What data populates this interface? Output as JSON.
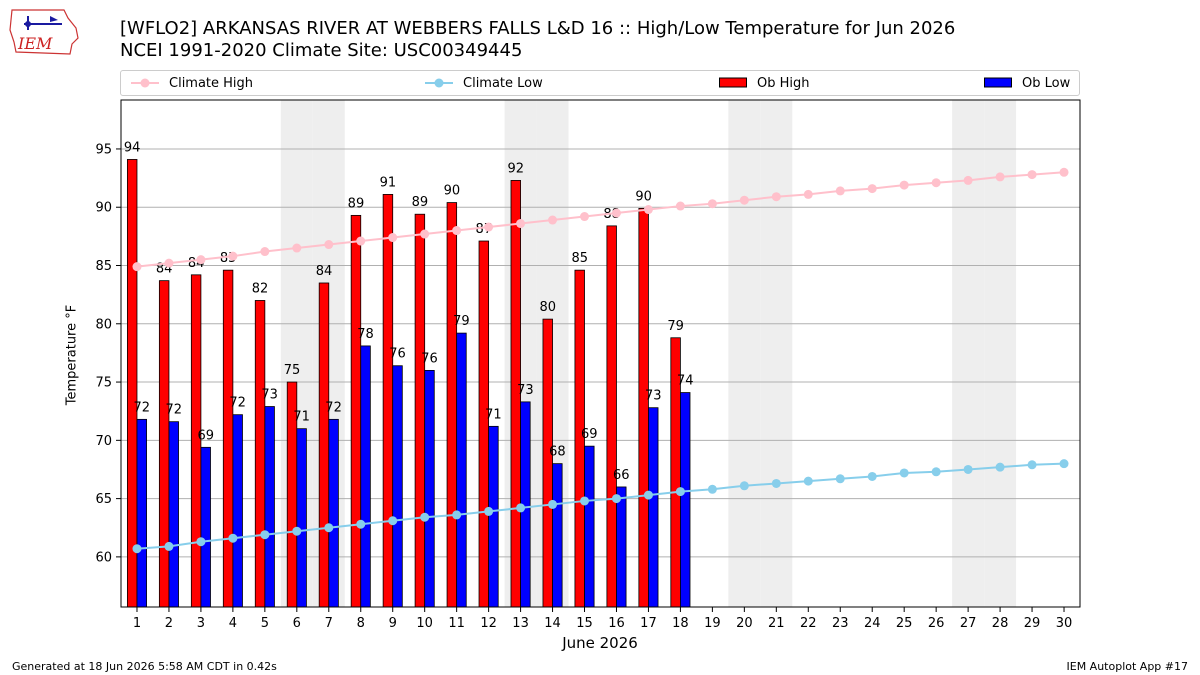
{
  "header": {
    "title_line1": "[WFLO2] ARKANSAS RIVER  AT WEBBERS FALLS L&D 16 :: High/Low Temperature for Jun 2026",
    "title_line2": "NCEI 1991-2020 Climate Site: USC00349445",
    "logo_text": "IEM"
  },
  "legend": {
    "climate_high": "Climate High",
    "climate_low": "Climate Low",
    "ob_high": "Ob High",
    "ob_low": "Ob Low"
  },
  "footer": {
    "left": "Generated at 18 Jun 2026 5:58 AM CDT in 0.42s",
    "right": "IEM Autoplot App #17"
  },
  "colors": {
    "ob_high": "#ff0000",
    "ob_low": "#0000ff",
    "climate_high": "#ffc0cb",
    "climate_low": "#87ceeb",
    "weekend_shade": "#eeeeee",
    "grid": "#b0b0b0"
  },
  "chart_data": {
    "type": "bar",
    "xlabel": "June 2026",
    "ylabel": "Temperature °F",
    "ylim": [
      55.7,
      99.2
    ],
    "xlim": [
      0.5,
      30.5
    ],
    "yticks": [
      60,
      65,
      70,
      75,
      80,
      85,
      90,
      95
    ],
    "days": [
      1,
      2,
      3,
      4,
      5,
      6,
      7,
      8,
      9,
      10,
      11,
      12,
      13,
      14,
      15,
      16,
      17,
      18,
      19,
      20,
      21,
      22,
      23,
      24,
      25,
      26,
      27,
      28,
      29,
      30
    ],
    "shaded_days": [
      6,
      7,
      13,
      14,
      20,
      21,
      27,
      28
    ],
    "grid": "horizontal",
    "legend_position": "top",
    "series": [
      {
        "name": "Ob High",
        "kind": "bar",
        "values": [
          94.1,
          83.7,
          84.2,
          84.6,
          82.0,
          75.0,
          83.5,
          89.3,
          91.1,
          89.4,
          90.4,
          87.1,
          92.3,
          80.4,
          84.6,
          88.4,
          89.9,
          78.8
        ],
        "labels": [
          "94",
          "84",
          "84",
          "85",
          "82",
          "75",
          "84",
          "89",
          "91",
          "89",
          "90",
          "87",
          "92",
          "80",
          "85",
          "88",
          "90",
          "79"
        ]
      },
      {
        "name": "Ob Low",
        "kind": "bar",
        "values": [
          71.8,
          71.6,
          69.4,
          72.2,
          72.9,
          71.0,
          71.8,
          78.1,
          76.4,
          76.0,
          79.2,
          71.2,
          73.3,
          68.0,
          69.5,
          66.0,
          72.8,
          74.1
        ],
        "labels": [
          "72",
          "72",
          "69",
          "72",
          "73",
          "71",
          "72",
          "78",
          "76",
          "76",
          "79",
          "71",
          "73",
          "68",
          "69",
          "66",
          "73",
          "74"
        ]
      },
      {
        "name": "Climate High",
        "kind": "line",
        "values": [
          84.9,
          85.2,
          85.5,
          85.8,
          86.2,
          86.5,
          86.8,
          87.1,
          87.4,
          87.7,
          88.0,
          88.3,
          88.6,
          88.9,
          89.2,
          89.5,
          89.8,
          90.1,
          90.3,
          90.6,
          90.9,
          91.1,
          91.4,
          91.6,
          91.9,
          92.1,
          92.3,
          92.6,
          92.8,
          93.0
        ]
      },
      {
        "name": "Climate Low",
        "kind": "line",
        "values": [
          60.7,
          60.9,
          61.3,
          61.6,
          61.9,
          62.2,
          62.5,
          62.8,
          63.1,
          63.4,
          63.6,
          63.9,
          64.2,
          64.5,
          64.8,
          65.0,
          65.3,
          65.6,
          65.8,
          66.1,
          66.3,
          66.5,
          66.7,
          66.9,
          67.2,
          67.3,
          67.5,
          67.7,
          67.9,
          68.0
        ]
      }
    ]
  }
}
